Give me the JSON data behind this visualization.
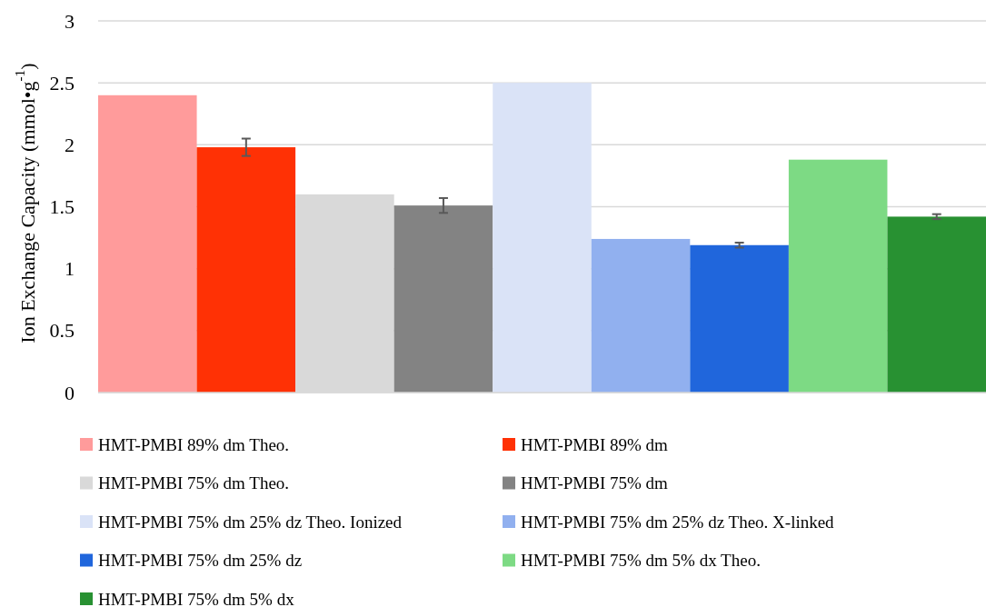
{
  "chart_data": {
    "type": "bar",
    "ylabel": "Ion Exchange Capacity (mmol•g$^{-1}$)",
    "categories": [
      null
    ],
    "series": [
      {
        "name": "HMT-PMBI 89% dm Theo.",
        "color": "#ff9b9b",
        "values": [
          2.4
        ]
      },
      {
        "name": "HMT-PMBI 89% dm",
        "color": "#ff3105",
        "values": [
          1.98
        ],
        "errors": [
          0.07
        ]
      },
      {
        "name": "HMT-PMBI 75% dm Theo.",
        "color": "#d9d9d9",
        "values": [
          1.6
        ]
      },
      {
        "name": "HMT-PMBI 75% dm",
        "color": "#838383",
        "values": [
          1.51
        ],
        "errors": [
          0.06
        ]
      },
      {
        "name": "HMT-PMBI 75% dm 25% dz Theo. Ionized",
        "color": "#dae3f7",
        "values": [
          2.5
        ]
      },
      {
        "name": "HMT-PMBI 75% dm 25% dz Theo. X-linked",
        "color": "#91b0ef",
        "values": [
          1.24
        ]
      },
      {
        "name": "HMT-PMBI 75% dm 25% dz",
        "color": "#2066dc",
        "values": [
          1.19
        ],
        "errors": [
          0.02
        ]
      },
      {
        "name": "HMT-PMBI 75% dm 5% dx Theo.",
        "color": "#7dda84",
        "values": [
          1.88
        ]
      },
      {
        "name": "HMT-PMBI 75% dm 5% dx",
        "color": "#289132",
        "values": [
          1.42
        ],
        "errors": [
          0.02
        ]
      }
    ],
    "ylim": [
      0,
      3
    ],
    "yticks": [
      0,
      0.5,
      1,
      1.5,
      2,
      2.5,
      3
    ],
    "grid": "y",
    "legend": "bottom"
  }
}
